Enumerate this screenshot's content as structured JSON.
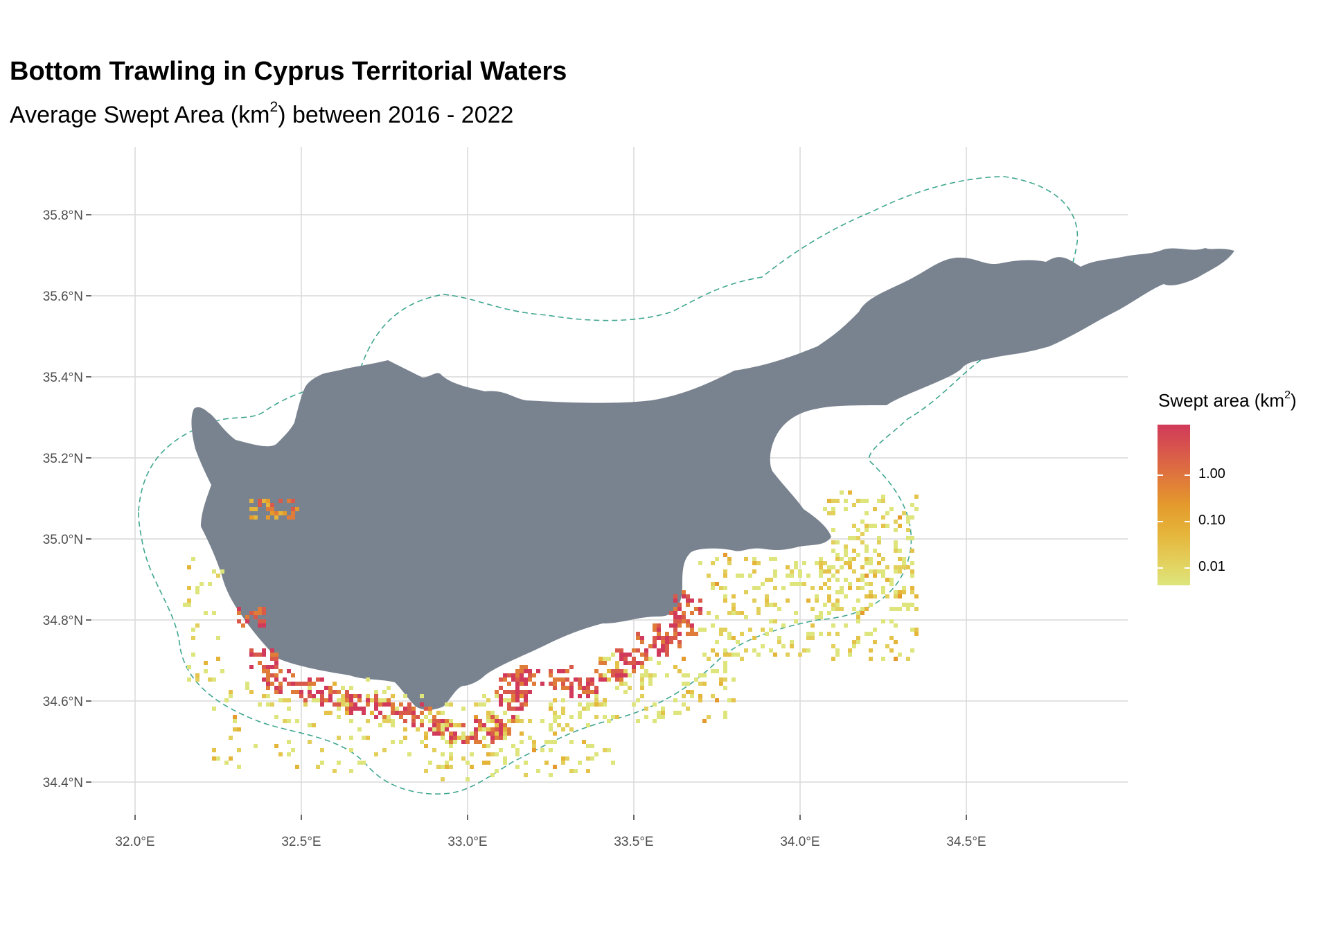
{
  "title": "Bottom Trawling in Cyprus Territorial Waters",
  "subtitle": {
    "prefix": "Average Swept Area (km",
    "sup": "2",
    "suffix": ") between 2016 - 2022"
  },
  "map": {
    "land_color": "#79838f",
    "boundary_color": "#3fa68f",
    "grid_color": "#d9d9d9",
    "lon_ticks": [
      "32.0°E",
      "32.5°E",
      "33.0°E",
      "33.5°E",
      "34.0°E",
      "34.5°E"
    ],
    "lat_ticks": [
      "35.8°N",
      "35.6°N",
      "35.4°N",
      "35.2°N",
      "35.0°N",
      "34.8°N",
      "34.6°N",
      "34.4°N"
    ]
  },
  "legend": {
    "title_prefix": "Swept area (km",
    "title_sup": "2",
    "title_suffix": ")",
    "labels": [
      "1.00",
      "0.10",
      "0.01"
    ],
    "colors": [
      "#d13a5a",
      "#e49a2c",
      "#dde57c"
    ]
  }
}
